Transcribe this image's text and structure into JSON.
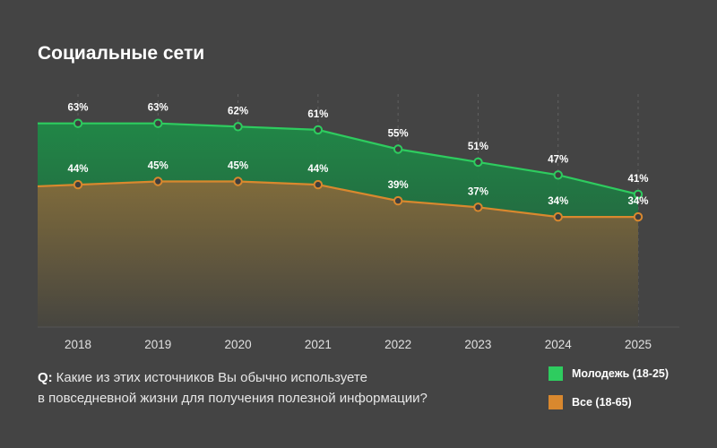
{
  "title": "Социальные сети",
  "question": {
    "prefix": "Q:",
    "line1": "Какие из этих источников Вы обычно используете",
    "line2": "в повседневной жизни для получения полезной информации?"
  },
  "chart_data": {
    "type": "area",
    "title": "Социальные сети",
    "xlabel": "",
    "ylabel": "",
    "x": [
      "2018",
      "2019",
      "2020",
      "2021",
      "2022",
      "2023",
      "2024",
      "2025"
    ],
    "value_suffix": "%",
    "ylim": [
      0,
      70
    ],
    "grid": "vertical dashed",
    "legend_position": "bottom-right",
    "series": [
      {
        "name": "Молодежь (18-25)",
        "color": "#2ecc5f",
        "values": [
          63,
          63,
          62,
          61,
          55,
          51,
          47,
          41
        ]
      },
      {
        "name": "Все (18-65)",
        "color": "#d9882e",
        "values": [
          44,
          45,
          45,
          44,
          39,
          37,
          34,
          34
        ]
      }
    ]
  }
}
